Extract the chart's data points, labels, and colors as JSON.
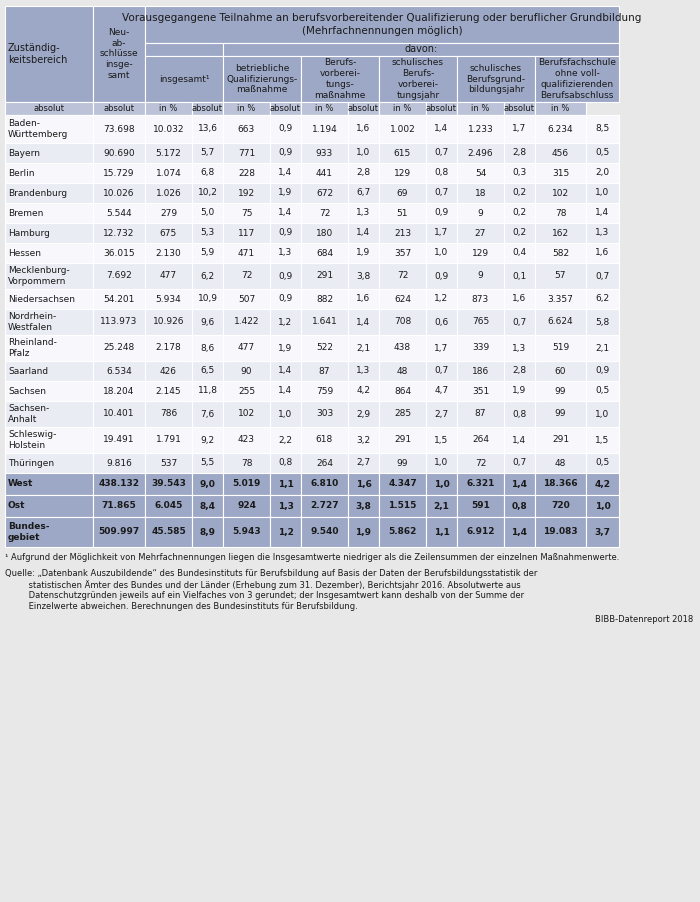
{
  "header_main": "Vorausgegangene Teilnahme an berufsvorbereitender Qualifizierung oder beruflicher Grundbildung\n(Mehrfachnennungen möglich)",
  "header_davon": "davon:",
  "col0_header": "Zuständig-\nkeitsbereich",
  "col1_header": "Neu-\nab-\nschlüsse\ninsge-\nsamt",
  "col2_header": "insgesamt¹",
  "col3_header": "betriebliche\nQualifizierungs-\nmaßnahme",
  "col4_header": "Berufs-\nvorberei-\ntungs-\nmaßnahme",
  "col5_header": "schulisches\nBerufs-\nvorberei-\ntungsjahr",
  "col6_header": "schulisches\nBerufsgrund-\nbildungsjahr",
  "col7_header": "Berufsfachschule\nohne voll-\nqualifizierenden\nBerufsabschluss",
  "subheader": [
    "absolut",
    "absolut",
    "in %",
    "absolut",
    "in %",
    "absolut",
    "in %",
    "absolut",
    "in %",
    "absolut",
    "in %",
    "absolut",
    "in %"
  ],
  "rows": [
    [
      "Baden-\nWürttemberg",
      "73.698",
      "10.032",
      "13,6",
      "663",
      "0,9",
      "1.194",
      "1,6",
      "1.002",
      "1,4",
      "1.233",
      "1,7",
      "6.234",
      "8,5"
    ],
    [
      "Bayern",
      "90.690",
      "5.172",
      "5,7",
      "771",
      "0,9",
      "933",
      "1,0",
      "615",
      "0,7",
      "2.496",
      "2,8",
      "456",
      "0,5"
    ],
    [
      "Berlin",
      "15.729",
      "1.074",
      "6,8",
      "228",
      "1,4",
      "441",
      "2,8",
      "129",
      "0,8",
      "54",
      "0,3",
      "315",
      "2,0"
    ],
    [
      "Brandenburg",
      "10.026",
      "1.026",
      "10,2",
      "192",
      "1,9",
      "672",
      "6,7",
      "69",
      "0,7",
      "18",
      "0,2",
      "102",
      "1,0"
    ],
    [
      "Bremen",
      "5.544",
      "279",
      "5,0",
      "75",
      "1,4",
      "72",
      "1,3",
      "51",
      "0,9",
      "9",
      "0,2",
      "78",
      "1,4"
    ],
    [
      "Hamburg",
      "12.732",
      "675",
      "5,3",
      "117",
      "0,9",
      "180",
      "1,4",
      "213",
      "1,7",
      "27",
      "0,2",
      "162",
      "1,3"
    ],
    [
      "Hessen",
      "36.015",
      "2.130",
      "5,9",
      "471",
      "1,3",
      "684",
      "1,9",
      "357",
      "1,0",
      "129",
      "0,4",
      "582",
      "1,6"
    ],
    [
      "Mecklenburg-\nVorpommern",
      "7.692",
      "477",
      "6,2",
      "72",
      "0,9",
      "291",
      "3,8",
      "72",
      "0,9",
      "9",
      "0,1",
      "57",
      "0,7"
    ],
    [
      "Niedersachsen",
      "54.201",
      "5.934",
      "10,9",
      "507",
      "0,9",
      "882",
      "1,6",
      "624",
      "1,2",
      "873",
      "1,6",
      "3.357",
      "6,2"
    ],
    [
      "Nordrhein-\nWestfalen",
      "113.973",
      "10.926",
      "9,6",
      "1.422",
      "1,2",
      "1.641",
      "1,4",
      "708",
      "0,6",
      "765",
      "0,7",
      "6.624",
      "5,8"
    ],
    [
      "Rheinland-\nPfalz",
      "25.248",
      "2.178",
      "8,6",
      "477",
      "1,9",
      "522",
      "2,1",
      "438",
      "1,7",
      "339",
      "1,3",
      "519",
      "2,1"
    ],
    [
      "Saarland",
      "6.534",
      "426",
      "6,5",
      "90",
      "1,4",
      "87",
      "1,3",
      "48",
      "0,7",
      "186",
      "2,8",
      "60",
      "0,9"
    ],
    [
      "Sachsen",
      "18.204",
      "2.145",
      "11,8",
      "255",
      "1,4",
      "759",
      "4,2",
      "864",
      "4,7",
      "351",
      "1,9",
      "99",
      "0,5"
    ],
    [
      "Sachsen-\nAnhalt",
      "10.401",
      "786",
      "7,6",
      "102",
      "1,0",
      "303",
      "2,9",
      "285",
      "2,7",
      "87",
      "0,8",
      "99",
      "1,0"
    ],
    [
      "Schleswig-\nHolstein",
      "19.491",
      "1.791",
      "9,2",
      "423",
      "2,2",
      "618",
      "3,2",
      "291",
      "1,5",
      "264",
      "1,4",
      "291",
      "1,5"
    ],
    [
      "Thüringen",
      "9.816",
      "537",
      "5,5",
      "78",
      "0,8",
      "264",
      "2,7",
      "99",
      "1,0",
      "72",
      "0,7",
      "48",
      "0,5"
    ]
  ],
  "summary_rows": [
    [
      "West",
      "438.132",
      "39.543",
      "9,0",
      "5.019",
      "1,1",
      "6.810",
      "1,6",
      "4.347",
      "1,0",
      "6.321",
      "1,4",
      "18.366",
      "4,2"
    ],
    [
      "Ost",
      "71.865",
      "6.045",
      "8,4",
      "924",
      "1,3",
      "2.727",
      "3,8",
      "1.515",
      "2,1",
      "591",
      "0,8",
      "720",
      "1,0"
    ],
    [
      "Bundes-\ngebiet",
      "509.997",
      "45.585",
      "8,9",
      "5.943",
      "1,2",
      "9.540",
      "1,9",
      "5.862",
      "1,1",
      "6.912",
      "1,4",
      "19.083",
      "3,7"
    ]
  ],
  "footnote": "¹ Aufgrund der Möglichkeit von Mehrfachnennungen liegen die Insgesamtwerte niedriger als die Zeilensummen der einzelnen Maßnahmenwerte.",
  "source_line1": "Quelle: „Datenbank Auszubildende“ des Bundesinstituts für Berufsbildung auf Basis der Daten der Berufsbildungsstatistik der",
  "source_line2": "         statistischen Ämter des Bundes und der Länder (Erhebung zum 31. Dezember), Berichtsjahr 2016. Absolutwerte aus",
  "source_line3": "         Datenschutzgründen jeweils auf ein Vielfaches von 3 gerundet; der Insgesamtwert kann deshalb von der Summe der",
  "source_line4": "         Einzelwerte abweichen. Berechnungen des Bundesinstituts für Berufsbildung.",
  "bibb": "BIBB-Datenreport 2018",
  "bg_header": "#9da8c6",
  "bg_subheader": "#bcc3d8",
  "bg_row_light": "#eaecf4",
  "bg_row_white": "#f8f8fc",
  "bg_summary": "#9da8c6",
  "bg_page": "#e8e8e8",
  "text_dark": "#1a1a1a",
  "white": "#ffffff"
}
